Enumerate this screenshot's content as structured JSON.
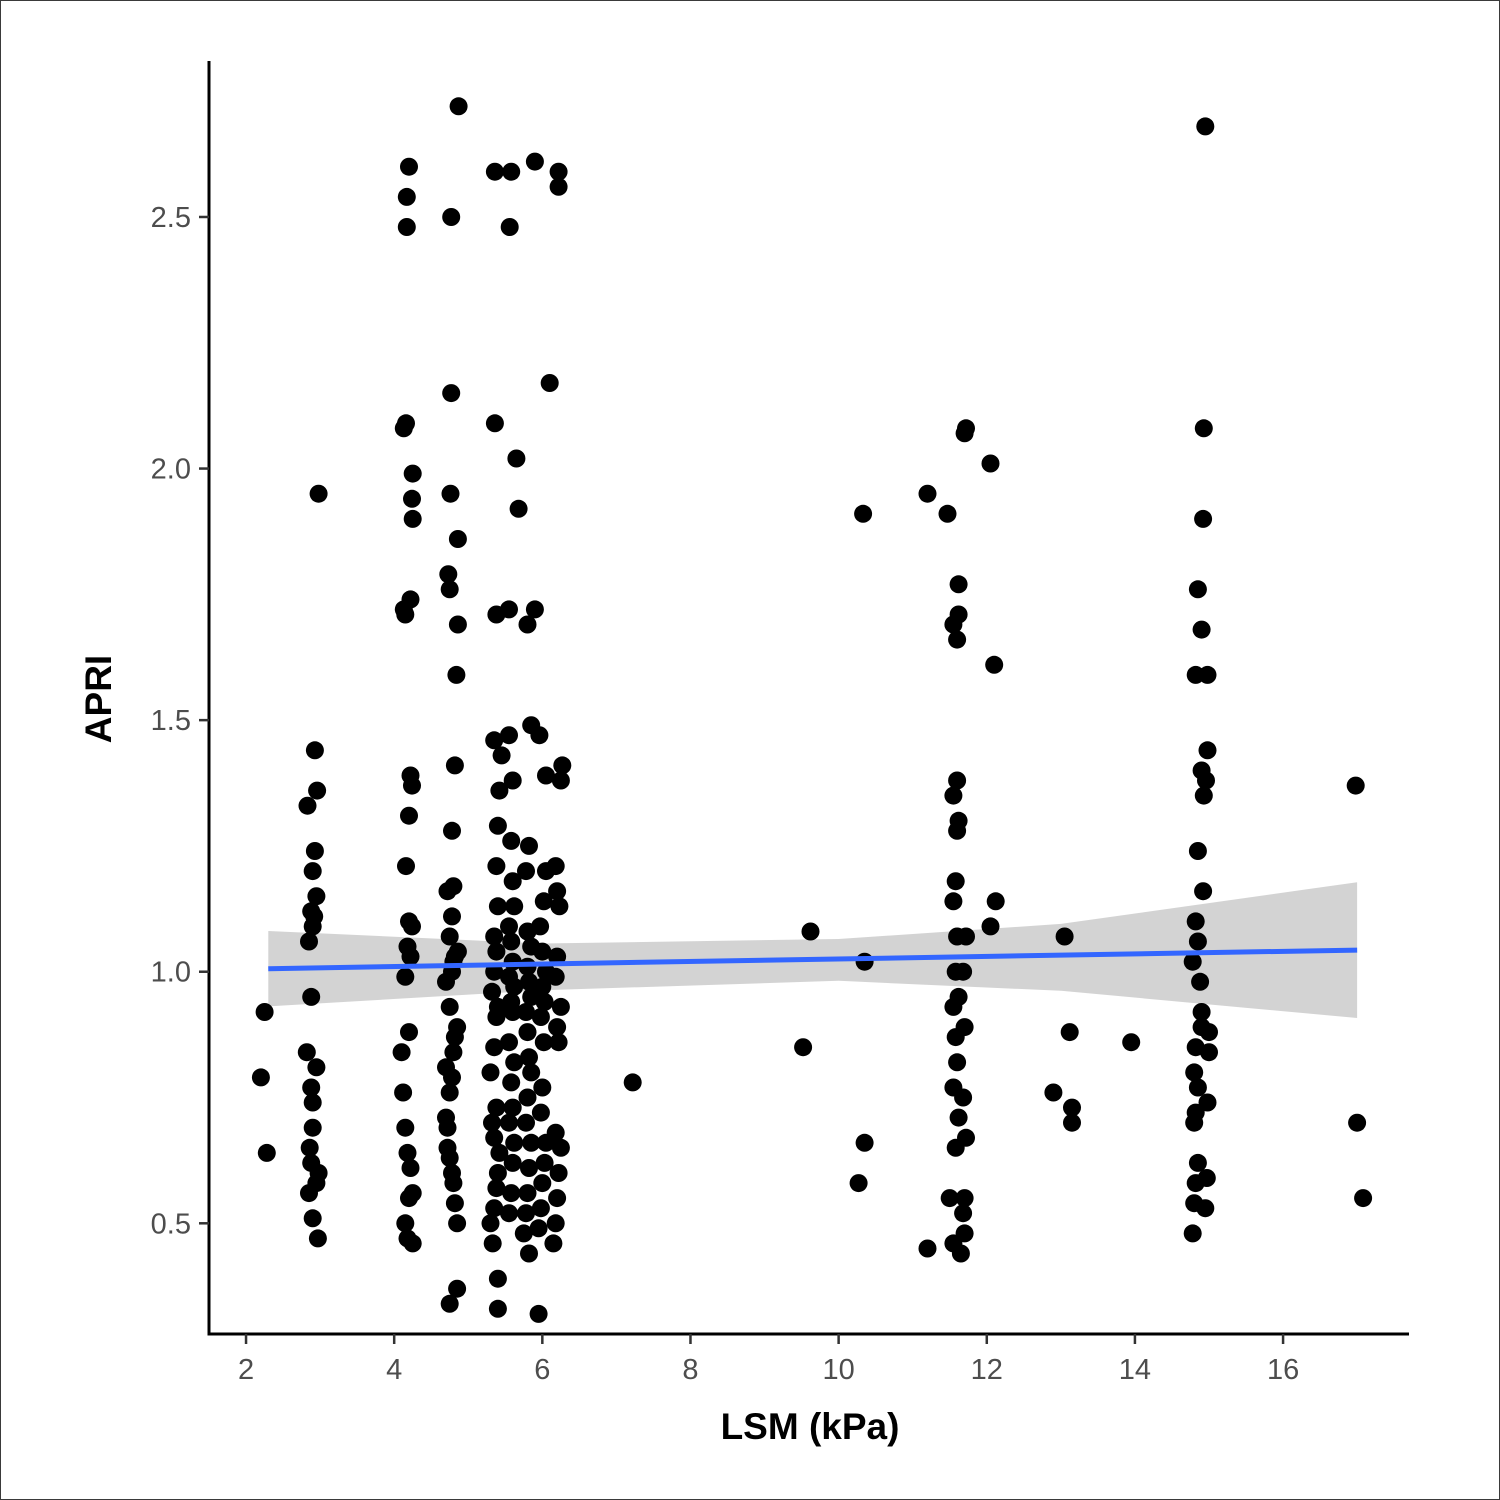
{
  "chart_data": {
    "type": "scatter",
    "title": "",
    "xlabel": "LSM (kPa)",
    "ylabel": "APRI",
    "xlim": [
      1.5,
      17.7
    ],
    "ylim": [
      0.28,
      2.81
    ],
    "xticks": [
      2,
      4,
      6,
      8,
      10,
      12,
      14,
      16
    ],
    "xtick_labels": [
      "2",
      "4",
      "6",
      "8",
      "10",
      "12",
      "14",
      "16"
    ],
    "yticks": [
      0.5,
      1.0,
      1.5,
      2.0,
      2.5
    ],
    "ytick_labels": [
      "0.5",
      "1.0",
      "1.5",
      "2.0",
      "2.5"
    ],
    "grid": false,
    "legend": "none",
    "colors": {
      "points": "#000000",
      "fit_line": "#3366FF",
      "confidence_band": "#C8C8C8",
      "axis": "#000000"
    },
    "regression": {
      "method": "linear",
      "x_range": [
        2.3,
        17.0
      ],
      "line": [
        [
          2.3,
          1.006
        ],
        [
          17.0,
          1.043
        ]
      ],
      "ci_upper": [
        [
          2.3,
          1.081
        ],
        [
          6.0,
          1.056
        ],
        [
          10.0,
          1.065
        ],
        [
          13.0,
          1.095
        ],
        [
          17.0,
          1.178
        ]
      ],
      "ci_lower": [
        [
          2.3,
          0.931
        ],
        [
          6.0,
          0.963
        ],
        [
          10.0,
          0.982
        ],
        [
          13.0,
          0.962
        ],
        [
          17.0,
          0.908
        ]
      ]
    },
    "points": [
      [
        2.2,
        0.79
      ],
      [
        2.25,
        0.92
      ],
      [
        2.28,
        0.64
      ],
      [
        2.82,
        0.84
      ],
      [
        2.85,
        0.56
      ],
      [
        2.88,
        0.62
      ],
      [
        2.86,
        0.65
      ],
      [
        2.9,
        0.51
      ],
      [
        2.95,
        0.58
      ],
      [
        2.98,
        0.6
      ],
      [
        2.97,
        0.47
      ],
      [
        2.9,
        0.69
      ],
      [
        2.9,
        0.74
      ],
      [
        2.88,
        0.77
      ],
      [
        2.95,
        0.81
      ],
      [
        2.88,
        0.95
      ],
      [
        2.85,
        1.06
      ],
      [
        2.9,
        1.09
      ],
      [
        2.88,
        1.12
      ],
      [
        2.95,
        1.15
      ],
      [
        2.92,
        1.11
      ],
      [
        2.9,
        1.2
      ],
      [
        2.93,
        1.24
      ],
      [
        2.83,
        1.33
      ],
      [
        2.96,
        1.36
      ],
      [
        2.93,
        1.44
      ],
      [
        2.98,
        1.95
      ],
      [
        4.1,
        0.84
      ],
      [
        4.12,
        0.76
      ],
      [
        4.15,
        0.69
      ],
      [
        4.18,
        0.64
      ],
      [
        4.2,
        0.55
      ],
      [
        4.15,
        0.5
      ],
      [
        4.18,
        0.47
      ],
      [
        4.25,
        0.46
      ],
      [
        4.22,
        0.61
      ],
      [
        4.25,
        0.56
      ],
      [
        4.2,
        0.88
      ],
      [
        4.15,
        0.99
      ],
      [
        4.22,
        1.03
      ],
      [
        4.18,
        1.05
      ],
      [
        4.2,
        1.1
      ],
      [
        4.24,
        1.09
      ],
      [
        4.16,
        1.21
      ],
      [
        4.2,
        1.31
      ],
      [
        4.22,
        1.39
      ],
      [
        4.24,
        1.37
      ],
      [
        4.15,
        1.71
      ],
      [
        4.13,
        1.72
      ],
      [
        4.22,
        1.74
      ],
      [
        4.25,
        1.9
      ],
      [
        4.24,
        1.94
      ],
      [
        4.25,
        1.99
      ],
      [
        4.13,
        2.08
      ],
      [
        4.16,
        2.09
      ],
      [
        4.17,
        2.48
      ],
      [
        4.17,
        2.54
      ],
      [
        4.2,
        2.6
      ],
      [
        4.7,
        0.71
      ],
      [
        4.72,
        0.65
      ],
      [
        4.75,
        0.63
      ],
      [
        4.78,
        0.6
      ],
      [
        4.8,
        0.58
      ],
      [
        4.82,
        0.54
      ],
      [
        4.85,
        0.5
      ],
      [
        4.72,
        0.69
      ],
      [
        4.7,
        0.81
      ],
      [
        4.75,
        0.76
      ],
      [
        4.78,
        0.79
      ],
      [
        4.8,
        0.84
      ],
      [
        4.82,
        0.87
      ],
      [
        4.85,
        0.89
      ],
      [
        4.75,
        0.93
      ],
      [
        4.7,
        0.98
      ],
      [
        4.78,
        1.0
      ],
      [
        4.8,
        1.02
      ],
      [
        4.82,
        1.03
      ],
      [
        4.86,
        1.04
      ],
      [
        4.75,
        1.07
      ],
      [
        4.78,
        1.11
      ],
      [
        4.72,
        1.16
      ],
      [
        4.8,
        1.17
      ],
      [
        4.78,
        1.28
      ],
      [
        4.82,
        1.41
      ],
      [
        4.84,
        1.59
      ],
      [
        4.86,
        1.69
      ],
      [
        4.75,
        1.76
      ],
      [
        4.73,
        1.79
      ],
      [
        4.76,
        1.95
      ],
      [
        4.86,
        1.86
      ],
      [
        4.77,
        2.15
      ],
      [
        4.77,
        2.5
      ],
      [
        4.87,
        2.72
      ],
      [
        4.85,
        0.37
      ],
      [
        4.75,
        0.34
      ],
      [
        5.3,
        0.5
      ],
      [
        5.33,
        0.46
      ],
      [
        5.35,
        0.53
      ],
      [
        5.38,
        0.57
      ],
      [
        5.4,
        0.6
      ],
      [
        5.42,
        0.64
      ],
      [
        5.35,
        0.67
      ],
      [
        5.32,
        0.7
      ],
      [
        5.38,
        0.73
      ],
      [
        5.3,
        0.8
      ],
      [
        5.35,
        0.85
      ],
      [
        5.38,
        0.91
      ],
      [
        5.4,
        0.93
      ],
      [
        5.32,
        0.96
      ],
      [
        5.35,
        1.0
      ],
      [
        5.38,
        1.04
      ],
      [
        5.35,
        1.07
      ],
      [
        5.4,
        1.13
      ],
      [
        5.38,
        1.21
      ],
      [
        5.4,
        1.29
      ],
      [
        5.42,
        1.36
      ],
      [
        5.35,
        1.46
      ],
      [
        5.45,
        1.43
      ],
      [
        5.38,
        1.71
      ],
      [
        5.36,
        2.09
      ],
      [
        5.36,
        2.59
      ],
      [
        5.4,
        0.39
      ],
      [
        5.4,
        0.33
      ],
      [
        5.55,
        0.52
      ],
      [
        5.58,
        0.56
      ],
      [
        5.6,
        0.62
      ],
      [
        5.62,
        0.66
      ],
      [
        5.55,
        0.7
      ],
      [
        5.6,
        0.73
      ],
      [
        5.58,
        0.78
      ],
      [
        5.62,
        0.82
      ],
      [
        5.55,
        0.86
      ],
      [
        5.6,
        0.92
      ],
      [
        5.58,
        0.94
      ],
      [
        5.62,
        0.97
      ],
      [
        5.55,
        0.99
      ],
      [
        5.6,
        1.02
      ],
      [
        5.58,
        1.06
      ],
      [
        5.55,
        1.09
      ],
      [
        5.62,
        1.13
      ],
      [
        5.6,
        1.18
      ],
      [
        5.58,
        1.26
      ],
      [
        5.6,
        1.38
      ],
      [
        5.55,
        1.47
      ],
      [
        5.55,
        1.72
      ],
      [
        5.68,
        1.92
      ],
      [
        5.65,
        2.02
      ],
      [
        5.56,
        2.48
      ],
      [
        5.58,
        2.59
      ],
      [
        5.75,
        0.48
      ],
      [
        5.78,
        0.52
      ],
      [
        5.8,
        0.56
      ],
      [
        5.82,
        0.61
      ],
      [
        5.85,
        0.66
      ],
      [
        5.78,
        0.7
      ],
      [
        5.8,
        0.75
      ],
      [
        5.85,
        0.8
      ],
      [
        5.82,
        0.83
      ],
      [
        5.8,
        0.88
      ],
      [
        5.78,
        0.92
      ],
      [
        5.85,
        0.95
      ],
      [
        5.82,
        0.98
      ],
      [
        5.8,
        1.01
      ],
      [
        5.85,
        1.05
      ],
      [
        5.8,
        1.08
      ],
      [
        5.78,
        1.2
      ],
      [
        5.82,
        1.25
      ],
      [
        5.85,
        1.49
      ],
      [
        5.8,
        1.69
      ],
      [
        5.9,
        1.72
      ],
      [
        5.9,
        2.61
      ],
      [
        5.82,
        0.44
      ],
      [
        5.95,
        0.32
      ],
      [
        5.95,
        0.49
      ],
      [
        5.98,
        0.53
      ],
      [
        6.0,
        0.58
      ],
      [
        6.03,
        0.62
      ],
      [
        6.05,
        0.66
      ],
      [
        5.98,
        0.72
      ],
      [
        6.0,
        0.77
      ],
      [
        6.02,
        0.86
      ],
      [
        5.98,
        0.91
      ],
      [
        6.03,
        0.94
      ],
      [
        6.0,
        0.97
      ],
      [
        6.05,
        1.0
      ],
      [
        6.0,
        1.04
      ],
      [
        5.97,
        1.09
      ],
      [
        6.02,
        1.14
      ],
      [
        6.05,
        1.2
      ],
      [
        5.96,
        1.47
      ],
      [
        6.05,
        1.39
      ],
      [
        6.1,
        2.17
      ],
      [
        6.22,
        2.59
      ],
      [
        6.22,
        2.56
      ],
      [
        6.15,
        0.46
      ],
      [
        6.18,
        0.5
      ],
      [
        6.2,
        0.55
      ],
      [
        6.22,
        0.6
      ],
      [
        6.25,
        0.65
      ],
      [
        6.18,
        0.68
      ],
      [
        6.22,
        0.86
      ],
      [
        6.2,
        0.89
      ],
      [
        6.25,
        0.93
      ],
      [
        6.18,
        0.99
      ],
      [
        6.2,
        1.03
      ],
      [
        6.23,
        1.13
      ],
      [
        6.2,
        1.16
      ],
      [
        6.18,
        1.21
      ],
      [
        6.25,
        1.38
      ],
      [
        6.27,
        1.41
      ],
      [
        7.22,
        0.78
      ],
      [
        9.52,
        0.85
      ],
      [
        9.62,
        1.08
      ],
      [
        10.27,
        0.58
      ],
      [
        10.33,
        1.91
      ],
      [
        10.35,
        0.66
      ],
      [
        10.35,
        1.02
      ],
      [
        11.2,
        0.45
      ],
      [
        11.2,
        1.95
      ],
      [
        11.47,
        1.91
      ],
      [
        11.5,
        0.55
      ],
      [
        11.55,
        0.46
      ],
      [
        11.58,
        0.65
      ],
      [
        11.62,
        0.71
      ],
      [
        11.55,
        0.77
      ],
      [
        11.6,
        0.82
      ],
      [
        11.58,
        0.87
      ],
      [
        11.55,
        0.93
      ],
      [
        11.62,
        0.95
      ],
      [
        11.58,
        1.0
      ],
      [
        11.6,
        1.07
      ],
      [
        11.55,
        1.14
      ],
      [
        11.58,
        1.18
      ],
      [
        11.6,
        1.28
      ],
      [
        11.62,
        1.3
      ],
      [
        11.55,
        1.35
      ],
      [
        11.6,
        1.38
      ],
      [
        11.55,
        1.69
      ],
      [
        11.6,
        1.66
      ],
      [
        11.62,
        1.71
      ],
      [
        11.62,
        1.77
      ],
      [
        11.68,
        0.52
      ],
      [
        11.7,
        0.48
      ],
      [
        11.65,
        0.44
      ],
      [
        11.7,
        0.55
      ],
      [
        11.72,
        0.67
      ],
      [
        11.68,
        0.75
      ],
      [
        11.7,
        0.89
      ],
      [
        11.68,
        1.0
      ],
      [
        11.72,
        1.07
      ],
      [
        11.7,
        2.07
      ],
      [
        11.72,
        2.08
      ],
      [
        12.05,
        2.01
      ],
      [
        12.05,
        1.09
      ],
      [
        12.1,
        1.61
      ],
      [
        12.12,
        1.14
      ],
      [
        12.9,
        0.76
      ],
      [
        13.05,
        1.07
      ],
      [
        13.12,
        0.88
      ],
      [
        13.15,
        0.73
      ],
      [
        13.15,
        0.7
      ],
      [
        13.95,
        0.86
      ],
      [
        14.78,
        0.48
      ],
      [
        14.8,
        0.54
      ],
      [
        14.82,
        0.58
      ],
      [
        14.85,
        0.62
      ],
      [
        14.8,
        0.7
      ],
      [
        14.82,
        0.72
      ],
      [
        14.85,
        0.77
      ],
      [
        14.8,
        0.8
      ],
      [
        14.82,
        0.85
      ],
      [
        14.78,
        1.02
      ],
      [
        14.85,
        1.06
      ],
      [
        14.82,
        1.1
      ],
      [
        14.85,
        1.24
      ],
      [
        14.82,
        1.59
      ],
      [
        14.85,
        1.76
      ],
      [
        14.88,
        0.98
      ],
      [
        14.9,
        0.92
      ],
      [
        14.9,
        0.89
      ],
      [
        14.92,
        1.16
      ],
      [
        14.9,
        1.4
      ],
      [
        14.93,
        1.35
      ],
      [
        14.9,
        1.68
      ],
      [
        14.92,
        1.9
      ],
      [
        14.93,
        2.08
      ],
      [
        14.95,
        2.68
      ],
      [
        14.95,
        0.53
      ],
      [
        14.97,
        0.59
      ],
      [
        14.98,
        0.74
      ],
      [
        15.0,
        0.84
      ],
      [
        15.0,
        0.88
      ],
      [
        14.98,
        1.44
      ],
      [
        14.98,
        1.59
      ],
      [
        14.96,
        1.38
      ],
      [
        16.98,
        1.37
      ],
      [
        17.0,
        0.7
      ],
      [
        17.08,
        0.55
      ]
    ]
  }
}
